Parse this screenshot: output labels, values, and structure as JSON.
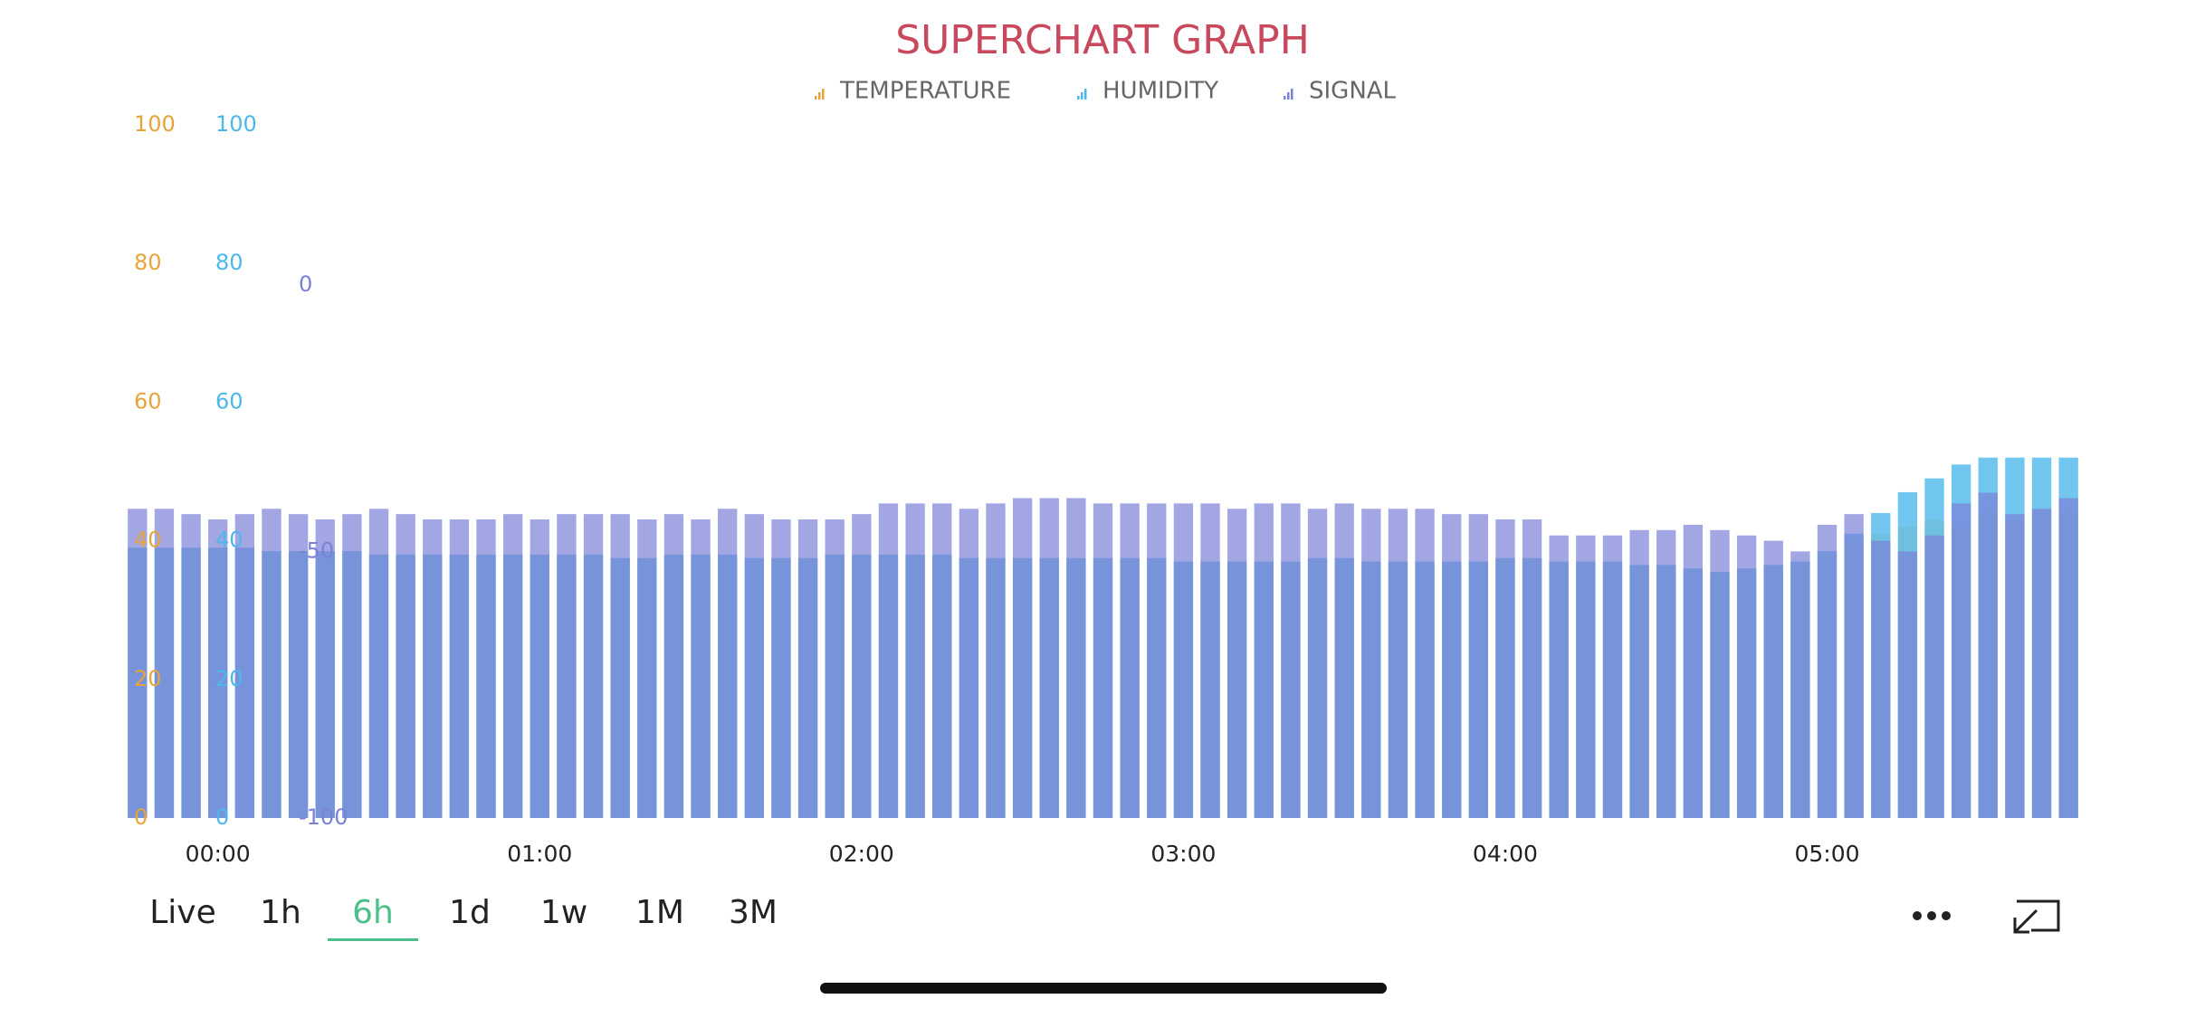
{
  "chart_data": {
    "type": "bar",
    "title": "SUPERCHART GRAPH",
    "categories": [
      null,
      null,
      null,
      "00:00",
      null,
      null,
      null,
      null,
      null,
      null,
      null,
      null,
      null,
      null,
      null,
      "01:00",
      null,
      null,
      null,
      null,
      null,
      null,
      null,
      null,
      null,
      null,
      null,
      "02:00",
      null,
      null,
      null,
      null,
      null,
      null,
      null,
      null,
      null,
      null,
      null,
      "03:00",
      null,
      null,
      null,
      null,
      null,
      null,
      null,
      null,
      null,
      null,
      null,
      "04:00",
      null,
      null,
      null,
      null,
      null,
      null,
      null,
      null,
      null,
      null,
      null,
      "05:00",
      null,
      null,
      null,
      null,
      null,
      null,
      null,
      null,
      null
    ],
    "series": [
      {
        "name": "TEMPERATURE",
        "color": "#e8a33a",
        "axis": "y",
        "values": [
          39,
          39,
          39,
          39,
          39,
          38.5,
          38.5,
          38.5,
          38.5,
          38,
          38,
          38,
          38,
          38,
          38,
          38,
          38,
          38,
          37.5,
          37.5,
          38,
          38,
          38,
          37.5,
          37.5,
          37.5,
          38,
          38,
          38,
          38,
          38,
          37.5,
          37.5,
          37.5,
          37.5,
          37.5,
          37.5,
          37.5,
          37.5,
          37,
          37,
          37,
          37,
          37,
          37.5,
          37.5,
          37,
          37,
          37,
          37,
          37,
          37.5,
          37.5,
          37,
          37,
          37,
          36.5,
          36.5,
          36,
          35.5,
          36,
          36.5,
          37,
          38,
          40,
          41,
          42,
          43,
          42,
          44,
          43,
          44,
          44
        ]
      },
      {
        "name": "HUMIDITY",
        "color": "#4cb8ea",
        "axis": "y",
        "values": [
          39,
          39,
          39,
          39,
          39,
          38.5,
          38.5,
          38.5,
          38.5,
          38,
          38,
          38,
          38,
          38,
          38,
          38,
          38,
          38,
          37.5,
          37.5,
          38,
          38,
          38,
          37.5,
          37.5,
          37.5,
          38,
          38,
          38,
          38,
          38,
          37.5,
          37.5,
          37.5,
          37.5,
          37.5,
          37.5,
          37.5,
          37.5,
          37,
          37,
          37,
          37,
          37,
          37.5,
          37.5,
          37,
          37,
          37,
          37,
          37,
          37.5,
          37.5,
          37,
          37,
          37,
          36.5,
          36.5,
          36,
          35.5,
          36,
          36.5,
          37,
          38.5,
          41,
          44,
          47,
          49,
          51,
          52,
          52,
          52,
          52
        ]
      },
      {
        "name": "SIGNAL",
        "color": "#7a82d8",
        "axis": "y2",
        "values": [
          -42,
          -42,
          -43,
          -44,
          -43,
          -42,
          -43,
          -44,
          -43,
          -42,
          -43,
          -44,
          -44,
          -44,
          -43,
          -44,
          -43,
          -43,
          -43,
          -44,
          -43,
          -44,
          -42,
          -43,
          -44,
          -44,
          -44,
          -43,
          -41,
          -41,
          -41,
          -42,
          -41,
          -40,
          -40,
          -40,
          -41,
          -41,
          -41,
          -41,
          -41,
          -42,
          -41,
          -41,
          -42,
          -41,
          -42,
          -42,
          -42,
          -43,
          -43,
          -44,
          -44,
          -47,
          -47,
          -47,
          -46,
          -46,
          -45,
          -46,
          -47,
          -48,
          -50,
          -45,
          -43,
          -48,
          -50,
          -47,
          -41,
          -39,
          -43,
          -42,
          -40
        ]
      }
    ],
    "ylim": [
      0,
      100
    ],
    "yticks": [
      0,
      20,
      40,
      60,
      80,
      100
    ],
    "y1b_ticks": [
      0,
      20,
      40,
      60,
      80,
      100
    ],
    "y2lim": [
      -100,
      30
    ],
    "y2ticks": [
      -100,
      -50,
      0
    ]
  },
  "ui": {
    "ranges": [
      "Live",
      "1h",
      "6h",
      "1d",
      "1w",
      "1M",
      "3M"
    ],
    "selected": "6h"
  }
}
